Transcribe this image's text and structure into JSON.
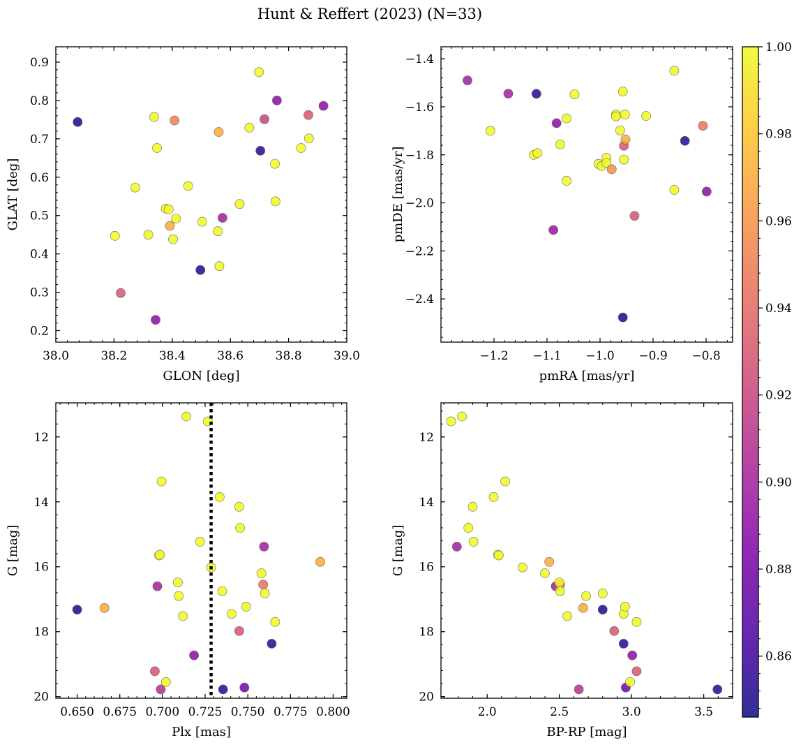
{
  "figure": {
    "title": "Hunt & Reffert (2023) (N=33)"
  },
  "colorbar": {
    "colormap": "plasma",
    "range": [
      0.846,
      1.0
    ],
    "ticks": [
      0.86,
      0.88,
      0.9,
      0.92,
      0.94,
      0.96,
      0.98,
      1.0
    ],
    "tick_labels": [
      "0.86",
      "0.88",
      "0.90",
      "0.92",
      "0.94",
      "0.96",
      "0.98",
      "1.00"
    ]
  },
  "marker_style": {
    "edgecolor": "#6b6b6b",
    "alpha": 0.85
  },
  "vline_color": "#000000",
  "chart_data": [
    {
      "type": "scatter",
      "xlabel": "GLON [deg]",
      "ylabel": "GLAT [deg]",
      "xlim": [
        38.0,
        39.0
      ],
      "ylim": [
        0.17,
        0.94
      ],
      "xticks": [
        38.0,
        38.2,
        38.4,
        38.6,
        38.8,
        39.0
      ],
      "xtick_labels": [
        "38.0",
        "38.2",
        "38.4",
        "38.6",
        "38.8",
        "39.0"
      ],
      "xminor": 0.04,
      "yticks": [
        0.2,
        0.3,
        0.4,
        0.5,
        0.6,
        0.7,
        0.8,
        0.9
      ],
      "ytick_labels": [
        "0.2",
        "0.3",
        "0.4",
        "0.5",
        "0.6",
        "0.7",
        "0.8",
        "0.9"
      ],
      "yminor": 0.02,
      "points": [
        {
          "x": 38.075,
          "y": 0.744,
          "c": 0.85
        },
        {
          "x": 38.203,
          "y": 0.447,
          "c": 1.0
        },
        {
          "x": 38.223,
          "y": 0.298,
          "c": 0.93
        },
        {
          "x": 38.273,
          "y": 0.573,
          "c": 1.0
        },
        {
          "x": 38.318,
          "y": 0.45,
          "c": 1.0
        },
        {
          "x": 38.338,
          "y": 0.757,
          "c": 1.0
        },
        {
          "x": 38.343,
          "y": 0.228,
          "c": 0.89
        },
        {
          "x": 38.348,
          "y": 0.676,
          "c": 1.0
        },
        {
          "x": 38.378,
          "y": 0.518,
          "c": 1.0
        },
        {
          "x": 38.388,
          "y": 0.516,
          "c": 1.0
        },
        {
          "x": 38.392,
          "y": 0.473,
          "c": 0.97
        },
        {
          "x": 38.403,
          "y": 0.438,
          "c": 1.0
        },
        {
          "x": 38.408,
          "y": 0.748,
          "c": 0.95
        },
        {
          "x": 38.413,
          "y": 0.492,
          "c": 1.0
        },
        {
          "x": 38.455,
          "y": 0.577,
          "c": 1.0
        },
        {
          "x": 38.497,
          "y": 0.358,
          "c": 0.85
        },
        {
          "x": 38.503,
          "y": 0.484,
          "c": 1.0
        },
        {
          "x": 38.557,
          "y": 0.459,
          "c": 1.0
        },
        {
          "x": 38.56,
          "y": 0.718,
          "c": 0.97
        },
        {
          "x": 38.562,
          "y": 0.368,
          "c": 1.0
        },
        {
          "x": 38.573,
          "y": 0.494,
          "c": 0.9
        },
        {
          "x": 38.632,
          "y": 0.53,
          "c": 1.0
        },
        {
          "x": 38.665,
          "y": 0.729,
          "c": 1.0
        },
        {
          "x": 38.698,
          "y": 0.874,
          "c": 1.0
        },
        {
          "x": 38.703,
          "y": 0.669,
          "c": 0.855
        },
        {
          "x": 38.717,
          "y": 0.751,
          "c": 0.92
        },
        {
          "x": 38.753,
          "y": 0.635,
          "c": 1.0
        },
        {
          "x": 38.755,
          "y": 0.537,
          "c": 1.0
        },
        {
          "x": 38.76,
          "y": 0.8,
          "c": 0.89
        },
        {
          "x": 38.843,
          "y": 0.676,
          "c": 1.0
        },
        {
          "x": 38.868,
          "y": 0.762,
          "c": 0.93
        },
        {
          "x": 38.87,
          "y": 0.701,
          "c": 1.0
        },
        {
          "x": 38.92,
          "y": 0.786,
          "c": 0.89
        }
      ]
    },
    {
      "type": "scatter",
      "xlabel": "pmRA [mas/yr]",
      "ylabel": "pmDE [mas/yr]",
      "xlim": [
        -1.3,
        -0.75
      ],
      "ylim": [
        -2.58,
        -1.35
      ],
      "xticks": [
        -1.2,
        -1.1,
        -1.0,
        -0.9,
        -0.8
      ],
      "xtick_labels": [
        "−1.2",
        "−1.1",
        "−1.0",
        "−0.9",
        "−0.8"
      ],
      "xminor": 0.02,
      "yticks": [
        -2.4,
        -2.2,
        -2.0,
        -1.8,
        -1.6,
        -1.4
      ],
      "ytick_labels": [
        "−2.4",
        "−2.2",
        "−2.0",
        "−1.8",
        "−1.6",
        "−1.4"
      ],
      "yminor": 0.04,
      "points": [
        {
          "x": -1.25,
          "y": -1.49,
          "c": 0.9
        },
        {
          "x": -1.207,
          "y": -1.7,
          "c": 1.0
        },
        {
          "x": -1.173,
          "y": -1.545,
          "c": 0.9
        },
        {
          "x": -1.125,
          "y": -1.8,
          "c": 1.0
        },
        {
          "x": -1.118,
          "y": -1.793,
          "c": 1.0
        },
        {
          "x": -1.12,
          "y": -1.546,
          "c": 0.855
        },
        {
          "x": -1.088,
          "y": -2.113,
          "c": 0.895
        },
        {
          "x": -1.082,
          "y": -1.668,
          "c": 0.89
        },
        {
          "x": -1.075,
          "y": -1.757,
          "c": 1.0
        },
        {
          "x": -1.063,
          "y": -1.648,
          "c": 1.0
        },
        {
          "x": -1.063,
          "y": -1.908,
          "c": 1.0
        },
        {
          "x": -1.048,
          "y": -1.548,
          "c": 1.0
        },
        {
          "x": -1.003,
          "y": -1.838,
          "c": 1.0
        },
        {
          "x": -0.997,
          "y": -1.847,
          "c": 1.0
        },
        {
          "x": -0.988,
          "y": -1.812,
          "c": 1.0
        },
        {
          "x": -0.988,
          "y": -1.833,
          "c": 1.0
        },
        {
          "x": -0.978,
          "y": -1.86,
          "c": 0.96
        },
        {
          "x": -0.97,
          "y": -1.632,
          "c": 1.0
        },
        {
          "x": -0.97,
          "y": -1.64,
          "c": 1.0
        },
        {
          "x": -0.962,
          "y": -1.698,
          "c": 1.0
        },
        {
          "x": -0.957,
          "y": -1.536,
          "c": 1.0
        },
        {
          "x": -0.955,
          "y": -1.762,
          "c": 0.93
        },
        {
          "x": -0.953,
          "y": -1.632,
          "c": 1.0
        },
        {
          "x": -0.955,
          "y": -1.82,
          "c": 1.0
        },
        {
          "x": -0.952,
          "y": -1.736,
          "c": 0.97
        },
        {
          "x": -0.957,
          "y": -2.477,
          "c": 0.85
        },
        {
          "x": -0.935,
          "y": -2.054,
          "c": 0.93
        },
        {
          "x": -0.913,
          "y": -1.638,
          "c": 1.0
        },
        {
          "x": -0.86,
          "y": -1.45,
          "c": 1.0
        },
        {
          "x": -0.86,
          "y": -1.946,
          "c": 1.0
        },
        {
          "x": -0.84,
          "y": -1.742,
          "c": 0.855
        },
        {
          "x": -0.806,
          "y": -1.679,
          "c": 0.945
        },
        {
          "x": -0.799,
          "y": -1.953,
          "c": 0.89
        }
      ]
    },
    {
      "type": "scatter",
      "xlabel": "Plx [mas]",
      "ylabel": "G [mag]",
      "xlim": [
        0.6375,
        0.808
      ],
      "ylim": [
        20.05,
        10.95
      ],
      "y_inverted": true,
      "xticks": [
        0.65,
        0.675,
        0.7,
        0.725,
        0.75,
        0.775,
        0.8
      ],
      "xtick_labels": [
        "0.650",
        "0.675",
        "0.700",
        "0.725",
        "0.750",
        "0.775",
        "0.800"
      ],
      "xminor": 0.005,
      "yticks": [
        12,
        14,
        16,
        18,
        20
      ],
      "ytick_labels": [
        "12",
        "14",
        "16",
        "18",
        "20"
      ],
      "yminor": 0.4,
      "vline": {
        "x": 0.7285,
        "style": "dotted"
      },
      "points": [
        {
          "x": 0.65,
          "y": 17.32,
          "c": 0.85
        },
        {
          "x": 0.666,
          "y": 17.27,
          "c": 0.97
        },
        {
          "x": 0.6955,
          "y": 19.22,
          "c": 0.93
        },
        {
          "x": 0.697,
          "y": 16.6,
          "c": 0.9
        },
        {
          "x": 0.698,
          "y": 15.65,
          "c": 1.0
        },
        {
          "x": 0.6985,
          "y": 15.63,
          "c": 1.0
        },
        {
          "x": 0.699,
          "y": 19.78,
          "c": 0.91
        },
        {
          "x": 0.6995,
          "y": 13.37,
          "c": 1.0
        },
        {
          "x": 0.702,
          "y": 19.55,
          "c": 1.0
        },
        {
          "x": 0.709,
          "y": 16.48,
          "c": 1.0
        },
        {
          "x": 0.7095,
          "y": 16.9,
          "c": 1.0
        },
        {
          "x": 0.712,
          "y": 17.52,
          "c": 1.0
        },
        {
          "x": 0.714,
          "y": 11.37,
          "c": 1.0
        },
        {
          "x": 0.7185,
          "y": 18.73,
          "c": 0.89
        },
        {
          "x": 0.722,
          "y": 15.23,
          "c": 1.0
        },
        {
          "x": 0.7265,
          "y": 11.52,
          "c": 1.0
        },
        {
          "x": 0.7285,
          "y": 16.02,
          "c": 1.0
        },
        {
          "x": 0.7335,
          "y": 13.85,
          "c": 1.0
        },
        {
          "x": 0.735,
          "y": 16.75,
          "c": 1.0
        },
        {
          "x": 0.7355,
          "y": 19.78,
          "c": 0.855
        },
        {
          "x": 0.7405,
          "y": 17.45,
          "c": 1.0
        },
        {
          "x": 0.745,
          "y": 14.15,
          "c": 1.0
        },
        {
          "x": 0.7455,
          "y": 14.8,
          "c": 1.0
        },
        {
          "x": 0.745,
          "y": 17.98,
          "c": 0.93
        },
        {
          "x": 0.748,
          "y": 19.72,
          "c": 0.88
        },
        {
          "x": 0.749,
          "y": 17.23,
          "c": 1.0
        },
        {
          "x": 0.758,
          "y": 16.2,
          "c": 1.0
        },
        {
          "x": 0.759,
          "y": 16.55,
          "c": 0.945
        },
        {
          "x": 0.7595,
          "y": 15.38,
          "c": 0.9
        },
        {
          "x": 0.76,
          "y": 16.82,
          "c": 1.0
        },
        {
          "x": 0.764,
          "y": 18.37,
          "c": 0.855
        },
        {
          "x": 0.766,
          "y": 17.7,
          "c": 1.0
        },
        {
          "x": 0.7925,
          "y": 15.85,
          "c": 0.97
        }
      ]
    },
    {
      "type": "scatter",
      "xlabel": "BP-RP [mag]",
      "ylabel": "G [mag]",
      "xlim": [
        1.68,
        3.7
      ],
      "ylim": [
        20.05,
        10.95
      ],
      "y_inverted": true,
      "xticks": [
        2.0,
        2.5,
        3.0,
        3.5
      ],
      "xtick_labels": [
        "2.0",
        "2.5",
        "3.0",
        "3.5"
      ],
      "xminor": 0.1,
      "yticks": [
        12,
        14,
        16,
        18,
        20
      ],
      "ytick_labels": [
        "12",
        "14",
        "16",
        "18",
        "20"
      ],
      "yminor": 0.4,
      "points": [
        {
          "x": 1.75,
          "y": 11.52,
          "c": 1.0
        },
        {
          "x": 1.825,
          "y": 11.37,
          "c": 1.0
        },
        {
          "x": 1.79,
          "y": 15.38,
          "c": 0.9
        },
        {
          "x": 1.87,
          "y": 14.8,
          "c": 1.0
        },
        {
          "x": 1.9,
          "y": 14.15,
          "c": 1.0
        },
        {
          "x": 1.905,
          "y": 15.23,
          "c": 1.0
        },
        {
          "x": 2.045,
          "y": 13.85,
          "c": 1.0
        },
        {
          "x": 2.075,
          "y": 15.63,
          "c": 1.0
        },
        {
          "x": 2.08,
          "y": 15.65,
          "c": 1.0
        },
        {
          "x": 2.125,
          "y": 13.37,
          "c": 1.0
        },
        {
          "x": 2.245,
          "y": 16.02,
          "c": 1.0
        },
        {
          "x": 2.4,
          "y": 16.2,
          "c": 1.0
        },
        {
          "x": 2.43,
          "y": 15.85,
          "c": 0.97
        },
        {
          "x": 2.475,
          "y": 16.6,
          "c": 0.9
        },
        {
          "x": 2.505,
          "y": 16.55,
          "c": 0.945
        },
        {
          "x": 2.5,
          "y": 16.48,
          "c": 1.0
        },
        {
          "x": 2.505,
          "y": 16.75,
          "c": 1.0
        },
        {
          "x": 2.555,
          "y": 17.52,
          "c": 1.0
        },
        {
          "x": 2.635,
          "y": 19.78,
          "c": 0.91
        },
        {
          "x": 2.665,
          "y": 17.27,
          "c": 0.97
        },
        {
          "x": 2.685,
          "y": 16.9,
          "c": 1.0
        },
        {
          "x": 2.8,
          "y": 16.82,
          "c": 1.0
        },
        {
          "x": 2.8,
          "y": 17.32,
          "c": 0.85
        },
        {
          "x": 2.88,
          "y": 17.98,
          "c": 0.93
        },
        {
          "x": 2.945,
          "y": 18.37,
          "c": 0.855
        },
        {
          "x": 2.945,
          "y": 17.45,
          "c": 1.0
        },
        {
          "x": 2.955,
          "y": 17.23,
          "c": 1.0
        },
        {
          "x": 2.96,
          "y": 19.72,
          "c": 0.88
        },
        {
          "x": 2.99,
          "y": 19.55,
          "c": 1.0
        },
        {
          "x": 3.005,
          "y": 18.73,
          "c": 0.89
        },
        {
          "x": 3.035,
          "y": 17.7,
          "c": 1.0
        },
        {
          "x": 3.035,
          "y": 19.22,
          "c": 0.93
        },
        {
          "x": 3.595,
          "y": 19.78,
          "c": 0.855
        }
      ]
    }
  ]
}
